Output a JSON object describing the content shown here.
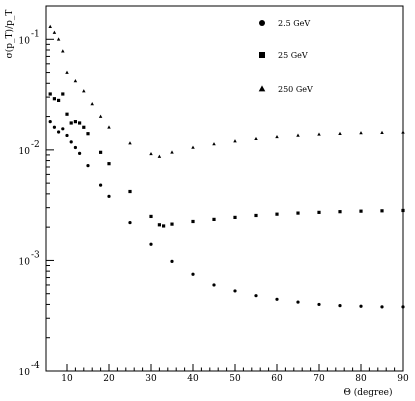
{
  "chart_data": {
    "type": "scatter",
    "x_scale": "linear",
    "y_scale": "log",
    "xlim": [
      5,
      90
    ],
    "ylim": [
      0.0001,
      0.2
    ],
    "xlabel": "Θ (degree)",
    "ylabel": "σ(p_T)/p_T",
    "x_ticks": [
      10,
      20,
      30,
      40,
      50,
      60,
      70,
      80,
      90
    ],
    "x_tick_labels": [
      "10",
      "20",
      "30",
      "40",
      "50",
      "60",
      "70",
      "80",
      "90"
    ],
    "y_ticks": [
      0.1,
      0.01,
      0.001,
      0.0001
    ],
    "y_tick_labels": [
      {
        "base": "10",
        "exp": "-1"
      },
      {
        "base": "10",
        "exp": "-2"
      },
      {
        "base": "10",
        "exp": "-3"
      },
      {
        "base": "10",
        "exp": "-4"
      }
    ],
    "grid": false,
    "legend_position": "top-right",
    "series": [
      {
        "name": "2.5 GeV",
        "marker": "circle",
        "points": [
          [
            6,
            0.018
          ],
          [
            7,
            0.016
          ],
          [
            8,
            0.0145
          ],
          [
            9,
            0.0155
          ],
          [
            10,
            0.0135
          ],
          [
            11,
            0.0118
          ],
          [
            12,
            0.0105
          ],
          [
            13,
            0.0093
          ],
          [
            15,
            0.0072
          ],
          [
            18,
            0.0048
          ],
          [
            20,
            0.0038
          ],
          [
            25,
            0.0022
          ],
          [
            30,
            0.0014
          ],
          [
            35,
            0.00098
          ],
          [
            40,
            0.00075
          ],
          [
            45,
            0.0006
          ],
          [
            50,
            0.00053
          ],
          [
            55,
            0.00048
          ],
          [
            60,
            0.000445
          ],
          [
            65,
            0.00042
          ],
          [
            70,
            0.0004
          ],
          [
            75,
            0.00039
          ],
          [
            80,
            0.000385
          ],
          [
            85,
            0.00038
          ],
          [
            90,
            0.00038
          ]
        ]
      },
      {
        "name": "25 GeV",
        "marker": "square",
        "points": [
          [
            6,
            0.032
          ],
          [
            7,
            0.029
          ],
          [
            8,
            0.028
          ],
          [
            9,
            0.032
          ],
          [
            10,
            0.021
          ],
          [
            11,
            0.0175
          ],
          [
            12,
            0.018
          ],
          [
            13,
            0.0175
          ],
          [
            14,
            0.016
          ],
          [
            15,
            0.014
          ],
          [
            18,
            0.0095
          ],
          [
            20,
            0.0075
          ],
          [
            25,
            0.0042
          ],
          [
            30,
            0.0025
          ],
          [
            32,
            0.0021
          ],
          [
            33,
            0.00205
          ],
          [
            35,
            0.00213
          ],
          [
            40,
            0.00225
          ],
          [
            45,
            0.00235
          ],
          [
            50,
            0.00245
          ],
          [
            55,
            0.00255
          ],
          [
            60,
            0.00262
          ],
          [
            65,
            0.00268
          ],
          [
            70,
            0.00272
          ],
          [
            75,
            0.00276
          ],
          [
            80,
            0.00279
          ],
          [
            85,
            0.00281
          ],
          [
            90,
            0.00283
          ]
        ]
      },
      {
        "name": "250 GeV",
        "marker": "triangle",
        "points": [
          [
            6,
            0.13
          ],
          [
            7,
            0.115
          ],
          [
            8,
            0.1
          ],
          [
            9,
            0.078
          ],
          [
            10,
            0.05
          ],
          [
            12,
            0.042
          ],
          [
            14,
            0.034
          ],
          [
            16,
            0.026
          ],
          [
            18,
            0.02
          ],
          [
            20,
            0.016
          ],
          [
            25,
            0.0115
          ],
          [
            30,
            0.0092
          ],
          [
            32,
            0.0087
          ],
          [
            35,
            0.0095
          ],
          [
            40,
            0.0105
          ],
          [
            45,
            0.0113
          ],
          [
            50,
            0.012
          ],
          [
            55,
            0.0126
          ],
          [
            60,
            0.0131
          ],
          [
            65,
            0.0135
          ],
          [
            70,
            0.0138
          ],
          [
            75,
            0.014
          ],
          [
            80,
            0.0142
          ],
          [
            85,
            0.0143
          ],
          [
            90,
            0.0144
          ]
        ]
      }
    ]
  }
}
